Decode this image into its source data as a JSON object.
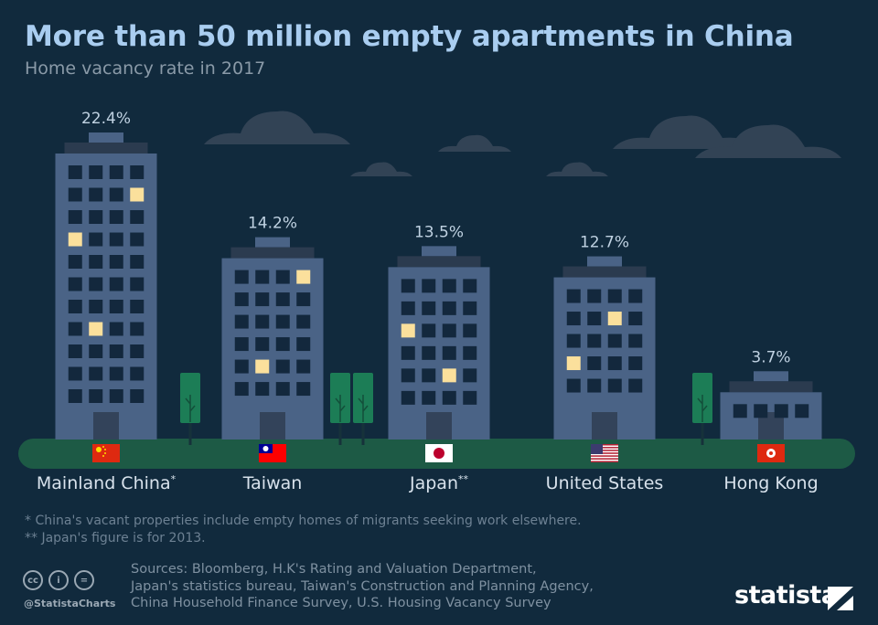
{
  "title": "More than 50 million empty apartments in China",
  "subtitle": "Home vacancy rate in 2017",
  "chart_data": {
    "type": "bar",
    "title": "More than 50 million empty apartments in China",
    "subtitle": "Home vacancy rate in 2017",
    "unit": "%",
    "categories": [
      "Mainland China*",
      "Taiwan",
      "Japan**",
      "United States",
      "Hong Kong"
    ],
    "values": [
      22.4,
      14.2,
      13.5,
      12.7,
      3.7
    ],
    "value_labels": [
      "22.4%",
      "14.2%",
      "13.5%",
      "12.7%",
      "3.7%"
    ],
    "flags": [
      "china-flag-icon",
      "taiwan-flag-icon",
      "japan-flag-icon",
      "us-flag-icon",
      "hong-kong-flag-icon"
    ],
    "grid": false,
    "legend": "none",
    "colors": {
      "background": "#112a3d",
      "building": "#4a6386",
      "roof": "#2b3b4f",
      "window_dark": "#13283d",
      "window_lit": "#fbe09c",
      "ground": "#1d5a45",
      "tree": "#1c7d56",
      "cloud": "#324355",
      "value_label": "#c0d2e2",
      "category_label": "#d8e2ec"
    }
  },
  "footnotes": [
    "*  China's vacant properties include empty homes of migrants seeking work elsewhere.",
    "** Japan's figure is for 2013."
  ],
  "sources": [
    "Sources: Bloomberg, H.K's Rating and Valuation Department,",
    "Japan's statistics bureau, Taiwan's Construction and Planning Agency,",
    "China Household Finance Survey, U.S. Housing Vacancy Survey"
  ],
  "footer": {
    "cc_icons": [
      "cc-icon",
      "by-icon",
      "nd-icon"
    ],
    "cc_labels": [
      "cc",
      "i",
      "="
    ],
    "handle": "@StatistaCharts",
    "brand": "statista"
  }
}
